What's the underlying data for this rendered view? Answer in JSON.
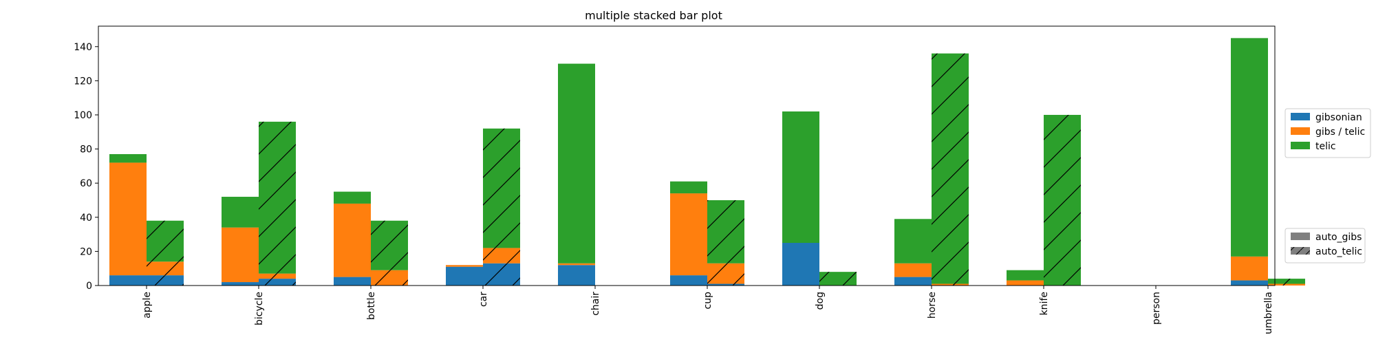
{
  "chart_data": {
    "type": "bar",
    "title": "multiple stacked bar plot",
    "xlabel": "",
    "ylabel": "",
    "ylim": [
      0,
      152
    ],
    "yticks": [
      0,
      20,
      40,
      60,
      80,
      100,
      120,
      140
    ],
    "categories": [
      "apple",
      "bicycle",
      "bottle",
      "car",
      "chair",
      "cup",
      "dog",
      "horse",
      "knife",
      "person",
      "umbrella"
    ],
    "colors": {
      "gibsonian": "#1f77b4",
      "gibs_telic": "#ff7f0e",
      "telic": "#2ca02c",
      "legend_gray": "#808080"
    },
    "groups": [
      {
        "name": "auto_gibs",
        "hatch": false,
        "series": [
          {
            "name": "gibsonian",
            "values": [
              6,
              2,
              5,
              11,
              12,
              6,
              25,
              5,
              0,
              0,
              3
            ]
          },
          {
            "name": "gibs / telic",
            "values": [
              66,
              32,
              43,
              1,
              1,
              48,
              0,
              8,
              3,
              0,
              14
            ]
          },
          {
            "name": "telic",
            "values": [
              5,
              18,
              7,
              0,
              117,
              7,
              77,
              26,
              6,
              0,
              128
            ]
          }
        ]
      },
      {
        "name": "auto_telic",
        "hatch": true,
        "series": [
          {
            "name": "gibsonian",
            "values": [
              6,
              4,
              0,
              13,
              0,
              1,
              0,
              0,
              0,
              0,
              0
            ]
          },
          {
            "name": "gibs / telic",
            "values": [
              8,
              3,
              9,
              9,
              0,
              12,
              0,
              1,
              0,
              0,
              1
            ]
          },
          {
            "name": "telic",
            "values": [
              24,
              89,
              29,
              70,
              0,
              37,
              8,
              135,
              100,
              0,
              3
            ]
          }
        ]
      }
    ],
    "legend_series": [
      "gibsonian",
      "gibs / telic",
      "telic"
    ],
    "legend_groups": [
      "auto_gibs",
      "auto_telic"
    ],
    "legend_placement": "right",
    "grid": false
  }
}
